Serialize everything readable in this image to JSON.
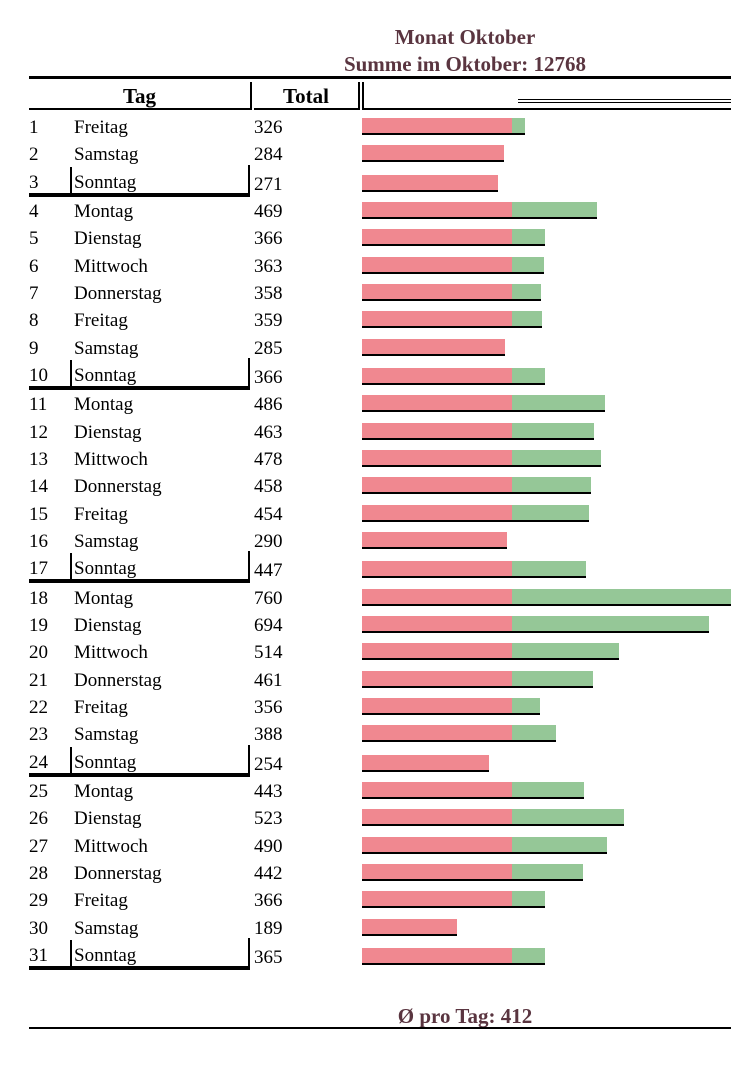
{
  "title": "Monat Oktober",
  "subtitle": "Summe im Oktober: 12768",
  "columns": {
    "day": "Tag",
    "total": "Total"
  },
  "footer": "Ø pro Tag: 412",
  "colors": {
    "base": "#f08890",
    "excess": "#95c797",
    "title": "#5a3540"
  },
  "chart_data": {
    "type": "bar",
    "orientation": "horizontal",
    "stacked": true,
    "base_cap": 300,
    "series": [
      {
        "name": "",
        "color": "#f08890"
      },
      {
        "name": "",
        "color": "#95c797"
      }
    ],
    "rows": [
      {
        "num": "1",
        "day": "Freitag",
        "total": 326,
        "sunday": false
      },
      {
        "num": "2",
        "day": "Samstag",
        "total": 284,
        "sunday": false
      },
      {
        "num": "3",
        "day": "Sonntag",
        "total": 271,
        "sunday": true
      },
      {
        "num": "4",
        "day": "Montag",
        "total": 469,
        "sunday": false
      },
      {
        "num": "5",
        "day": "Dienstag",
        "total": 366,
        "sunday": false
      },
      {
        "num": "6",
        "day": "Mittwoch",
        "total": 363,
        "sunday": false
      },
      {
        "num": "7",
        "day": "Donnerstag",
        "total": 358,
        "sunday": false
      },
      {
        "num": "8",
        "day": "Freitag",
        "total": 359,
        "sunday": false
      },
      {
        "num": "9",
        "day": "Samstag",
        "total": 285,
        "sunday": false
      },
      {
        "num": "10",
        "day": "Sonntag",
        "total": 366,
        "sunday": true
      },
      {
        "num": "11",
        "day": "Montag",
        "total": 486,
        "sunday": false
      },
      {
        "num": "12",
        "day": "Dienstag",
        "total": 463,
        "sunday": false
      },
      {
        "num": "13",
        "day": "Mittwoch",
        "total": 478,
        "sunday": false
      },
      {
        "num": "14",
        "day": "Donnerstag",
        "total": 458,
        "sunday": false
      },
      {
        "num": "15",
        "day": "Freitag",
        "total": 454,
        "sunday": false
      },
      {
        "num": "16",
        "day": "Samstag",
        "total": 290,
        "sunday": false
      },
      {
        "num": "17",
        "day": "Sonntag",
        "total": 447,
        "sunday": true
      },
      {
        "num": "18",
        "day": "Montag",
        "total": 760,
        "sunday": false
      },
      {
        "num": "19",
        "day": "Dienstag",
        "total": 694,
        "sunday": false
      },
      {
        "num": "20",
        "day": "Mittwoch",
        "total": 514,
        "sunday": false
      },
      {
        "num": "21",
        "day": "Donnerstag",
        "total": 461,
        "sunday": false
      },
      {
        "num": "22",
        "day": "Freitag",
        "total": 356,
        "sunday": false
      },
      {
        "num": "23",
        "day": "Samstag",
        "total": 388,
        "sunday": false
      },
      {
        "num": "24",
        "day": "Sonntag",
        "total": 254,
        "sunday": true
      },
      {
        "num": "25",
        "day": "Montag",
        "total": 443,
        "sunday": false
      },
      {
        "num": "26",
        "day": "Dienstag",
        "total": 523,
        "sunday": false
      },
      {
        "num": "27",
        "day": "Mittwoch",
        "total": 490,
        "sunday": false
      },
      {
        "num": "28",
        "day": "Donnerstag",
        "total": 442,
        "sunday": false
      },
      {
        "num": "29",
        "day": "Freitag",
        "total": 366,
        "sunday": false
      },
      {
        "num": "30",
        "day": "Samstag",
        "total": 189,
        "sunday": false
      },
      {
        "num": "31",
        "day": "Sonntag",
        "total": 365,
        "sunday": true
      }
    ]
  }
}
